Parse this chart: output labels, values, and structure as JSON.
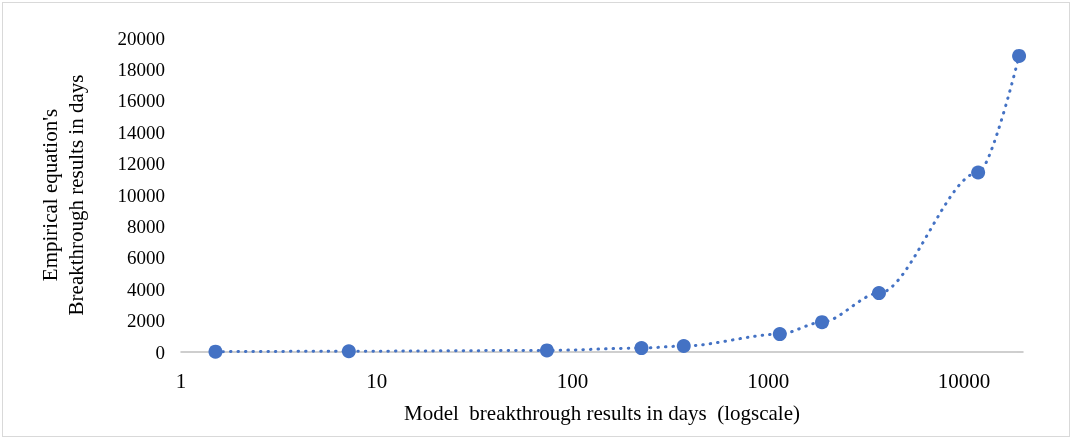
{
  "chart_data": {
    "type": "line",
    "xlabel": "Model  breakthrough results in days  (logscale)",
    "ylabel": "Empirical equation's\nBreakthrough results in days",
    "x": [
      1.5,
      7.2,
      74,
      225,
      370,
      1145,
      1880,
      3675,
      11800,
      19100
    ],
    "series": [
      {
        "color": "#4472c4",
        "values": [
          20,
          50,
          100,
          250,
          380,
          1140,
          1900,
          3750,
          11430,
          18860
        ]
      }
    ],
    "log": "x",
    "xlim": [
      1,
      20000
    ],
    "xticks": [
      1,
      10,
      100,
      1000,
      10000
    ],
    "ylim": [
      0,
      20000
    ],
    "yticks": [
      0,
      2000,
      4000,
      6000,
      8000,
      10000,
      12000,
      14000,
      16000,
      18000,
      20000
    ],
    "marker": "circle",
    "line_style": "dotted"
  }
}
